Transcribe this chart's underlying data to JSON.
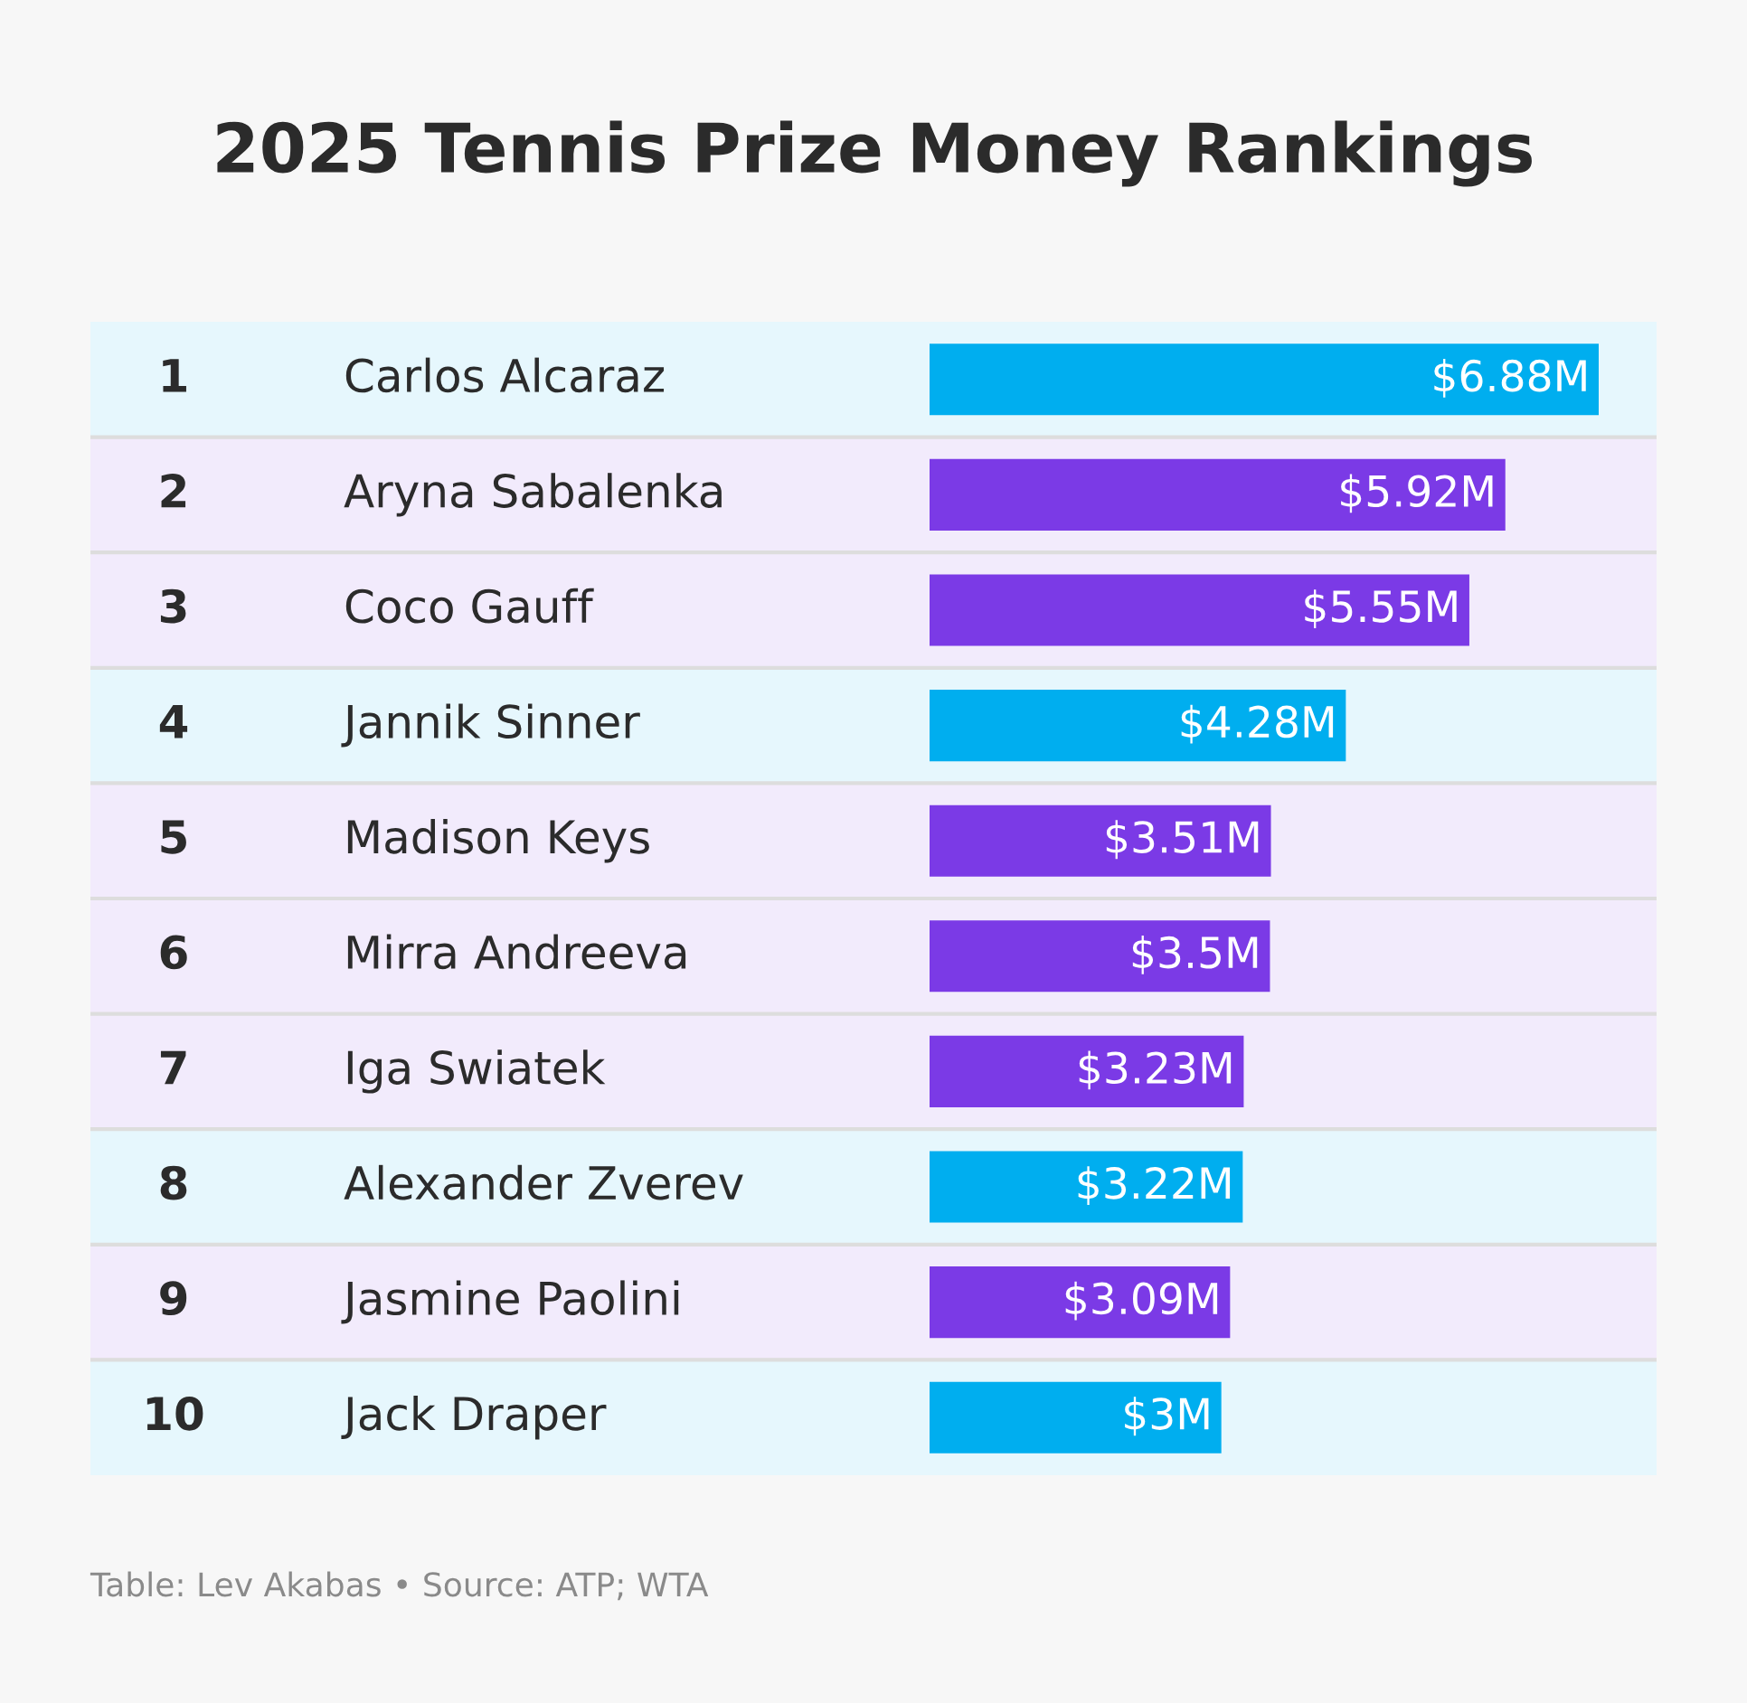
{
  "chart_data": {
    "type": "bar",
    "orientation": "horizontal",
    "title": "2025 Tennis Prize Money Rankings",
    "categories": [
      "Carlos Alcaraz",
      "Aryna Sabalenka",
      "Coco Gauff",
      "Jannik Sinner",
      "Madison Keys",
      "Mirra Andreeva",
      "Iga Swiatek",
      "Alexander Zverev",
      "Jasmine Paolini",
      "Jack Draper"
    ],
    "values": [
      6.88,
      5.92,
      5.55,
      4.28,
      3.51,
      3.5,
      3.23,
      3.22,
      3.09,
      3.0
    ],
    "colors": [
      "#00aeef",
      "#7b3ae6",
      "#7b3ae6",
      "#00aeef",
      "#7b3ae6",
      "#7b3ae6",
      "#7b3ae6",
      "#00aeef",
      "#7b3ae6",
      "#00aeef"
    ],
    "value_labels": [
      "$6.88M",
      "$5.92M",
      "$5.55M",
      "$4.28M",
      "$3.51M",
      "$3.5M",
      "$3.23M",
      "$3.22M",
      "$3.09M",
      "$3M"
    ],
    "annotations": [
      "1",
      "2",
      "3",
      "4",
      "5",
      "6",
      "7",
      "8",
      "9",
      "10",
      "Table: Lev Akabas • Source: ATP; WTA"
    ]
  }
}
